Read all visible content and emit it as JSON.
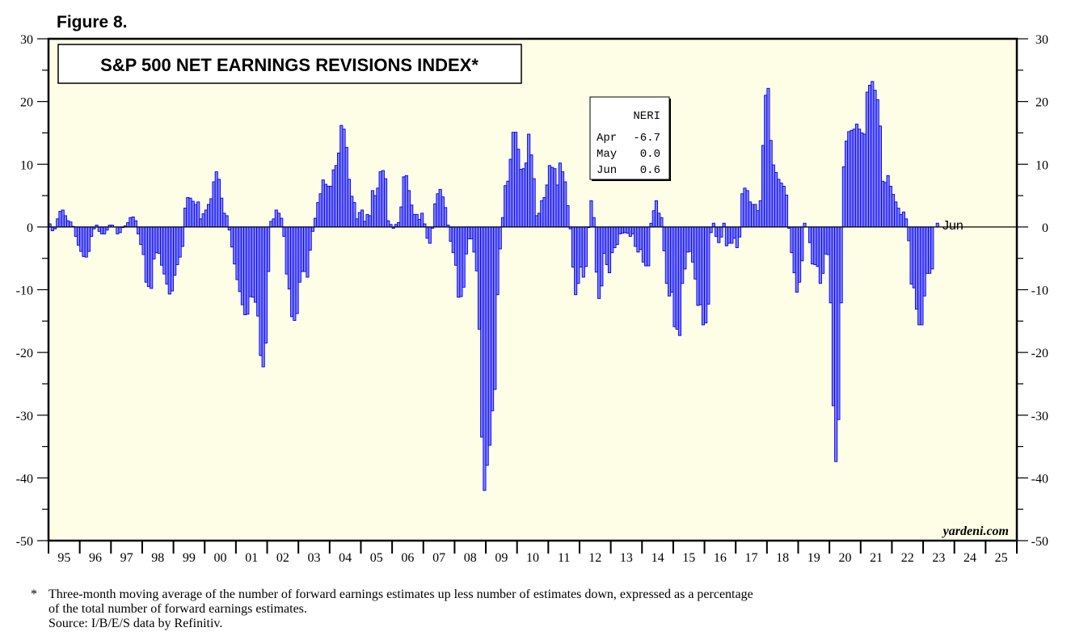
{
  "figure_label": "Figure 8.",
  "footnote": {
    "marker": "*",
    "line1": "Three-month moving average of the number of forward earnings estimates up less number of estimates down, expressed as a percentage",
    "line2": "of the total number of forward earnings estimates.",
    "source": "Source: I/B/E/S data by Refinitiv."
  },
  "watermark": "yardeni.com",
  "colors": {
    "background": "#fefee6",
    "bar_fill": "#8080ff",
    "bar_stroke": "#0000ee"
  },
  "chart_data": {
    "type": "bar",
    "title": "S&P 500 NET EARNINGS REVISIONS INDEX*",
    "xlabel": "",
    "ylabel": "",
    "ylim": [
      -50,
      30
    ],
    "yticks": [
      30,
      20,
      10,
      0,
      -10,
      -20,
      -30,
      -40,
      -50
    ],
    "ytick_labels": [
      "30",
      "20",
      "10",
      "0",
      "-10",
      "-20",
      "-30",
      "-40",
      "-50"
    ],
    "x_start": "1995-01",
    "frequency": "monthly",
    "x_tick_labels": [
      "95",
      "96",
      "97",
      "98",
      "99",
      "00",
      "01",
      "02",
      "03",
      "04",
      "05",
      "06",
      "07",
      "08",
      "09",
      "10",
      "11",
      "12",
      "13",
      "14",
      "15",
      "16",
      "17",
      "18",
      "19",
      "20",
      "21",
      "22",
      "23",
      "24",
      "25"
    ],
    "last_point_label": "Jun",
    "legend": {
      "header": "NERI",
      "rows": [
        {
          "month": "Apr",
          "value": "-6.7"
        },
        {
          "month": "May",
          "value": "0.0"
        },
        {
          "month": "Jun",
          "value": "0.6"
        }
      ]
    },
    "values": [
      0.5,
      -0.6,
      -0.3,
      1.3,
      2.5,
      2.7,
      1.8,
      1.0,
      0.8,
      0.1,
      -1.5,
      -2.9,
      -3.9,
      -4.7,
      -4.8,
      -3.9,
      -1.5,
      -0.3,
      0.3,
      -0.7,
      -1.1,
      -1.1,
      -0.5,
      0.3,
      0.3,
      0.0,
      -1.1,
      -0.9,
      -0.1,
      0.2,
      0.7,
      1.5,
      1.6,
      1.0,
      -1.1,
      -2.8,
      -4.4,
      -8.8,
      -9.5,
      -9.8,
      -5.1,
      -4.1,
      -4.2,
      -6.1,
      -7.5,
      -9.1,
      -10.7,
      -10.2,
      -7.7,
      -6.0,
      -4.8,
      -3.1,
      3.0,
      4.7,
      4.6,
      4.1,
      3.6,
      4.0,
      1.3,
      2.1,
      2.7,
      3.6,
      4.5,
      7.2,
      8.8,
      7.6,
      4.6,
      2.2,
      1.8,
      -0.5,
      -3.2,
      -5.9,
      -8.4,
      -10.3,
      -12.4,
      -14.0,
      -13.9,
      -11.1,
      -11.2,
      -12.0,
      -14.2,
      -20.5,
      -22.3,
      -18.5,
      -7.1,
      0.9,
      1.3,
      2.7,
      2.2,
      1.4,
      -1.5,
      -7.5,
      -9.9,
      -14.3,
      -14.9,
      -13.8,
      -8.8,
      -7.1,
      -7.1,
      -8.0,
      -3.7,
      -0.7,
      1.4,
      3.9,
      5.3,
      7.5,
      6.8,
      6.5,
      6.5,
      9.1,
      9.8,
      11.8,
      16.2,
      15.6,
      12.7,
      7.6,
      4.9,
      3.9,
      1.3,
      2.3,
      2.7,
      0.9,
      2.0,
      1.8,
      5.8,
      5.0,
      6.2,
      8.8,
      9.0,
      7.7,
      1.0,
      0.4,
      -0.2,
      0.4,
      0.7,
      3.2,
      8.0,
      8.2,
      5.8,
      3.5,
      2.0,
      2.0,
      1.2,
      2.2,
      0.5,
      -1.8,
      -2.6,
      -0.2,
      3.7,
      5.3,
      6.0,
      4.8,
      3.1,
      0.3,
      -2.3,
      -4.1,
      -6.1,
      -11.2,
      -11.1,
      -9.6,
      -4.3,
      -1.9,
      -1.9,
      -4.0,
      -7.0,
      -16.3,
      -33.5,
      -42.0,
      -38.0,
      -34.8,
      -29.3,
      -25.9,
      -10.8,
      -3.5,
      1.5,
      6.6,
      7.3,
      10.8,
      15.1,
      15.1,
      12.4,
      9.2,
      9.3,
      10.2,
      14.8,
      11.5,
      7.7,
      1.8,
      2.2,
      4.2,
      4.7,
      6.7,
      9.8,
      9.5,
      9.3,
      6.7,
      10.2,
      8.8,
      7.2,
      3.4,
      -0.3,
      -6.4,
      -10.8,
      -9.0,
      -6.4,
      -8.0,
      -6.3,
      -0.1,
      4.2,
      1.5,
      -7.2,
      -11.4,
      -9.4,
      -4.2,
      -6.0,
      -7.3,
      -4.1,
      -3.3,
      -2.8,
      -1.1,
      -1.0,
      -0.9,
      -1.0,
      -1.5,
      -1.1,
      -3.1,
      -4.0,
      -3.6,
      -5.6,
      -6.2,
      -6.2,
      0.6,
      2.6,
      4.2,
      2.2,
      1.5,
      -3.8,
      -9.0,
      -11.0,
      -10.4,
      -15.9,
      -16.3,
      -17.3,
      -9.0,
      -6.7,
      -4.0,
      -3.9,
      -5.6,
      -8.3,
      -12.5,
      -12.4,
      -15.6,
      -15.3,
      -12.3,
      -0.9,
      0.6,
      -1.5,
      -2.5,
      -1.6,
      0.6,
      -3.0,
      -2.6,
      -2.6,
      -1.8,
      -3.3,
      -1.6,
      5.3,
      6.2,
      5.8,
      4.0,
      3.6,
      3.6,
      2.6,
      4.2,
      13.0,
      21.0,
      22.1,
      13.8,
      9.9,
      8.7,
      7.6,
      7.0,
      6.5,
      5.1,
      -0.2,
      -4.1,
      -7.3,
      -10.4,
      -8.8,
      -5.4,
      0.6,
      0.0,
      -2.5,
      -5.9,
      -6.0,
      -6.3,
      -9.0,
      -7.4,
      -4.3,
      -4.4,
      -12.1,
      -28.5,
      -37.4,
      -30.7,
      -12.1,
      9.6,
      13.7,
      15.2,
      15.4,
      15.6,
      16.4,
      15.6,
      15.0,
      14.8,
      21.5,
      22.6,
      23.2,
      21.8,
      20.3,
      16.1,
      7.3,
      7.1,
      8.2,
      6.5,
      5.2,
      4.0,
      3.0,
      2.0,
      2.4,
      1.3,
      -2.2,
      -9.1,
      -9.7,
      -13.1,
      -15.6,
      -15.6,
      -11.0,
      -7.4,
      -7.4,
      -6.7,
      0.0,
      0.6
    ]
  }
}
